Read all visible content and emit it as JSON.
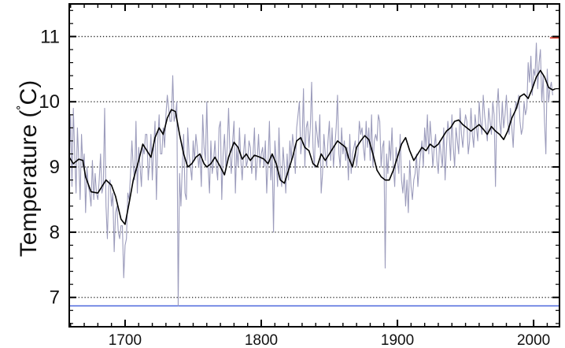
{
  "chart_data": {
    "type": "line",
    "title": "",
    "xlabel": "",
    "ylabel": "Temperature (˚C)",
    "ylabel_parts": {
      "prefix": "Temperature (",
      "degree": "˚",
      "unit": "C",
      "suffix": ")"
    },
    "xlim": [
      1659,
      2019
    ],
    "ylim": [
      6.55,
      11.5
    ],
    "x_ticks": [
      1700,
      1800,
      1900,
      2000
    ],
    "x_tick_labels": [
      "1700",
      "1800",
      "1900",
      "2000"
    ],
    "y_ticks": [
      7,
      8,
      9,
      10,
      11
    ],
    "y_tick_labels": [
      "7",
      "8",
      "9",
      "10",
      "11"
    ],
    "grid": "dotted horizontal lines at y ticks",
    "legend": "none",
    "colors": {
      "annual": "#9c9cbc",
      "smoothed": "#000000",
      "reference_low": "#4a66dd",
      "reference_high": "#dd3322",
      "grid": "#222222",
      "frame": "#000000"
    },
    "reference_lines": [
      {
        "y": 6.87,
        "color": "#4a66dd",
        "x_range": [
          1659,
          2019
        ]
      },
      {
        "y": 10.98,
        "color": "#dd3322",
        "x_range": [
          2012,
          2019
        ]
      }
    ],
    "series": [
      {
        "role": "annual mean",
        "x_start": 1659,
        "values": [
          9.0,
          9.8,
          8.7,
          9.9,
          9.2,
          8.6,
          9.6,
          9.1,
          8.5,
          9.5,
          9.0,
          9.2,
          8.3,
          9.0,
          8.7,
          8.6,
          8.4,
          9.1,
          8.5,
          8.9,
          8.6,
          8.5,
          8.8,
          9.2,
          8.6,
          8.7,
          9.9,
          8.4,
          7.9,
          8.7,
          8.8,
          8.4,
          8.6,
          7.7,
          8.3,
          8.4,
          8.0,
          7.9,
          8.1,
          8.1,
          7.3,
          7.8,
          7.9,
          8.6,
          8.5,
          8.9,
          9.4,
          9.0,
          8.8,
          9.7,
          8.6,
          9.3,
          9.0,
          8.7,
          9.3,
          9.2,
          9.5,
          9.5,
          8.8,
          9.1,
          9.5,
          8.8,
          9.3,
          9.7,
          8.5,
          9.4,
          9.8,
          9.2,
          9.2,
          9.6,
          9.3,
          9.8,
          10.1,
          9.9,
          9.7,
          9.7,
          10.4,
          9.7,
          9.8,
          10.0,
          6.87,
          8.9,
          8.4,
          9.0,
          9.5,
          8.6,
          8.5,
          9.6,
          9.2,
          9.0,
          8.8,
          9.4,
          9.1,
          9.5,
          9.3,
          9.0,
          9.2,
          8.7,
          9.8,
          9.3,
          9.1,
          10.0,
          9.0,
          8.6,
          9.4,
          8.9,
          9.1,
          9.4,
          9.0,
          8.8,
          9.6,
          9.7,
          8.5,
          9.2,
          9.5,
          9.0,
          9.3,
          9.9,
          9.2,
          8.9,
          9.4,
          9.7,
          8.6,
          9.3,
          9.0,
          9.6,
          9.1,
          8.8,
          9.2,
          9.5,
          9.0,
          9.1,
          9.4,
          9.3,
          8.9,
          9.2,
          9.6,
          8.8,
          9.1,
          9.5,
          9.0,
          9.2,
          9.3,
          9.0,
          9.4,
          8.6,
          9.1,
          9.7,
          8.8,
          9.2,
          8.0,
          9.4,
          9.1,
          8.7,
          9.6,
          8.9,
          8.7,
          9.3,
          9.0,
          8.6,
          9.2,
          8.8,
          9.4,
          9.1,
          9.5,
          9.3,
          8.9,
          9.6,
          9.8,
          10.0,
          9.2,
          9.4,
          10.2,
          9.0,
          9.6,
          9.7,
          9.3,
          9.6,
          10.3,
          9.3,
          9.0,
          9.7,
          9.5,
          9.3,
          9.8,
          8.6,
          8.9,
          9.5,
          9.2,
          9.0,
          9.4,
          9.7,
          9.1,
          9.6,
          9.0,
          9.3,
          9.6,
          10.1,
          9.2,
          9.0,
          9.6,
          9.2,
          9.4,
          9.1,
          9.3,
          8.8,
          9.5,
          8.9,
          9.2,
          9.3,
          9.4,
          9.0,
          9.2,
          9.7,
          9.5,
          9.6,
          9.3,
          9.1,
          9.7,
          9.3,
          9.6,
          9.1,
          9.8,
          9.0,
          9.4,
          9.5,
          9.4,
          9.8,
          9.7,
          9.0,
          9.3,
          9.4,
          7.45,
          9.2,
          8.9,
          9.4,
          9.1,
          9.6,
          9.0,
          8.7,
          9.3,
          9.1,
          8.9,
          9.5,
          8.8,
          8.6,
          8.9,
          8.4,
          8.8,
          8.3,
          9.1,
          8.7,
          8.5,
          8.8,
          8.9,
          9.2,
          8.7,
          9.0,
          9.2,
          9.4,
          9.0,
          9.6,
          9.3,
          9.8,
          9.2,
          9.7,
          9.4,
          9.0,
          9.3,
          9.5,
          9.1,
          8.9,
          9.4,
          9.2,
          9.0,
          9.6,
          8.8,
          9.3,
          9.7,
          9.5,
          9.1,
          9.8,
          9.3,
          9.0,
          9.6,
          9.4,
          9.2,
          9.9,
          9.5,
          9.3,
          9.6,
          9.8,
          9.7,
          9.2,
          9.4,
          9.9,
          9.5,
          9.3,
          9.8,
          9.6,
          9.4,
          10.0,
          9.7,
          9.5,
          10.1,
          9.8,
          9.6,
          9.4,
          9.9,
          9.7,
          9.5,
          10.0,
          9.8,
          8.7,
          9.9,
          10.2,
          9.7,
          9.5,
          10.0,
          9.6,
          9.8,
          10.1,
          9.7,
          9.5,
          9.9,
          9.6,
          9.3,
          9.8,
          10.0,
          9.9,
          10.1,
          9.7,
          9.5,
          9.6,
          10.0,
          9.8,
          9.9,
          10.6,
          10.3,
          10.7,
          10.1,
          10.5,
          10.4,
          10.9,
          10.2,
          10.6,
          10.8,
          10.0,
          10.4,
          9.7,
          9.2,
          10.5,
          10.0,
          10.2,
          10.3,
          10.1
        ]
      },
      {
        "role": "smoothed mean",
        "points": [
          [
            1659,
            9.15
          ],
          [
            1662,
            9.05
          ],
          [
            1666,
            9.12
          ],
          [
            1669,
            9.1
          ],
          [
            1671,
            8.85
          ],
          [
            1675,
            8.62
          ],
          [
            1680,
            8.6
          ],
          [
            1683,
            8.7
          ],
          [
            1686,
            8.8
          ],
          [
            1690,
            8.72
          ],
          [
            1693,
            8.55
          ],
          [
            1697,
            8.2
          ],
          [
            1700,
            8.12
          ],
          [
            1703,
            8.45
          ],
          [
            1706,
            8.8
          ],
          [
            1710,
            9.1
          ],
          [
            1713,
            9.35
          ],
          [
            1716,
            9.25
          ],
          [
            1719,
            9.15
          ],
          [
            1722,
            9.45
          ],
          [
            1725,
            9.6
          ],
          [
            1728,
            9.5
          ],
          [
            1731,
            9.75
          ],
          [
            1734,
            9.88
          ],
          [
            1737,
            9.85
          ],
          [
            1740,
            9.5
          ],
          [
            1743,
            9.2
          ],
          [
            1746,
            9.0
          ],
          [
            1749,
            9.05
          ],
          [
            1752,
            9.15
          ],
          [
            1755,
            9.2
          ],
          [
            1758,
            9.05
          ],
          [
            1760,
            9.0
          ],
          [
            1763,
            9.05
          ],
          [
            1766,
            9.15
          ],
          [
            1770,
            9.0
          ],
          [
            1773,
            8.88
          ],
          [
            1776,
            9.15
          ],
          [
            1780,
            9.38
          ],
          [
            1783,
            9.3
          ],
          [
            1786,
            9.12
          ],
          [
            1789,
            9.2
          ],
          [
            1792,
            9.1
          ],
          [
            1795,
            9.18
          ],
          [
            1799,
            9.15
          ],
          [
            1802,
            9.12
          ],
          [
            1805,
            9.05
          ],
          [
            1808,
            9.2
          ],
          [
            1811,
            9.05
          ],
          [
            1814,
            8.8
          ],
          [
            1817,
            8.75
          ],
          [
            1820,
            8.95
          ],
          [
            1823,
            9.15
          ],
          [
            1826,
            9.4
          ],
          [
            1829,
            9.45
          ],
          [
            1832,
            9.3
          ],
          [
            1835,
            9.25
          ],
          [
            1838,
            9.05
          ],
          [
            1841,
            9.0
          ],
          [
            1844,
            9.2
          ],
          [
            1847,
            9.1
          ],
          [
            1850,
            9.2
          ],
          [
            1853,
            9.3
          ],
          [
            1856,
            9.4
          ],
          [
            1859,
            9.35
          ],
          [
            1862,
            9.3
          ],
          [
            1864,
            9.15
          ],
          [
            1867,
            9.0
          ],
          [
            1870,
            9.3
          ],
          [
            1873,
            9.4
          ],
          [
            1876,
            9.48
          ],
          [
            1879,
            9.42
          ],
          [
            1882,
            9.2
          ],
          [
            1885,
            8.95
          ],
          [
            1888,
            8.85
          ],
          [
            1891,
            8.8
          ],
          [
            1894,
            8.8
          ],
          [
            1897,
            8.95
          ],
          [
            1900,
            9.15
          ],
          [
            1903,
            9.35
          ],
          [
            1906,
            9.45
          ],
          [
            1909,
            9.25
          ],
          [
            1912,
            9.1
          ],
          [
            1915,
            9.2
          ],
          [
            1918,
            9.3
          ],
          [
            1921,
            9.25
          ],
          [
            1924,
            9.35
          ],
          [
            1927,
            9.3
          ],
          [
            1930,
            9.35
          ],
          [
            1933,
            9.45
          ],
          [
            1936,
            9.55
          ],
          [
            1939,
            9.6
          ],
          [
            1942,
            9.7
          ],
          [
            1945,
            9.72
          ],
          [
            1948,
            9.65
          ],
          [
            1951,
            9.6
          ],
          [
            1954,
            9.55
          ],
          [
            1957,
            9.6
          ],
          [
            1960,
            9.65
          ],
          [
            1963,
            9.58
          ],
          [
            1966,
            9.5
          ],
          [
            1969,
            9.62
          ],
          [
            1972,
            9.55
          ],
          [
            1975,
            9.5
          ],
          [
            1978,
            9.42
          ],
          [
            1981,
            9.55
          ],
          [
            1984,
            9.75
          ],
          [
            1987,
            9.88
          ],
          [
            1990,
            10.08
          ],
          [
            1993,
            10.12
          ],
          [
            1996,
            10.05
          ],
          [
            1999,
            10.2
          ],
          [
            2002,
            10.38
          ],
          [
            2005,
            10.48
          ],
          [
            2008,
            10.38
          ],
          [
            2011,
            10.22
          ],
          [
            2014,
            10.18
          ],
          [
            2016,
            10.2
          ]
        ]
      }
    ]
  }
}
